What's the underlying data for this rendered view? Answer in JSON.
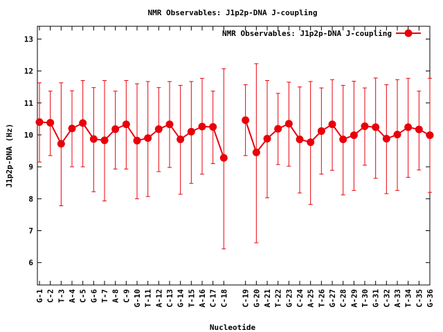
{
  "chart_data": {
    "type": "line",
    "title": "NMR Observables: J1p2p-DNA J-coupling",
    "xlabel": "Nucleotide",
    "ylabel": "J1p2p-DNA (Hz)",
    "ylim": [
      5.3,
      13.4
    ],
    "yticks": [
      6,
      7,
      8,
      9,
      10,
      11,
      12,
      13
    ],
    "grid": false,
    "legend_position": "top-right",
    "categories": [
      "G-1",
      "C-2",
      "T-3",
      "A-4",
      "C-5",
      "G-6",
      "T-7",
      "A-8",
      "C-9",
      "G-10",
      "T-11",
      "A-12",
      "C-13",
      "G-14",
      "T-15",
      "A-16",
      "C-17",
      "C-18",
      "",
      "C-19",
      "G-20",
      "A-21",
      "T-22",
      "G-23",
      "C-24",
      "A-25",
      "T-26",
      "G-27",
      "C-28",
      "A-29",
      "T-30",
      "G-31",
      "C-32",
      "A-33",
      "T-34",
      "C-35",
      "G-36"
    ],
    "series": [
      {
        "name": "NMR Observables: J1p2p-DNA J-coupling",
        "color": "#e8000b",
        "values": [
          10.4,
          10.38,
          9.72,
          10.2,
          10.37,
          9.87,
          9.83,
          10.18,
          10.33,
          9.82,
          9.9,
          10.18,
          10.33,
          9.86,
          10.1,
          10.26,
          10.25,
          9.28,
          null,
          10.46,
          9.45,
          9.88,
          10.19,
          10.35,
          9.86,
          9.77,
          10.12,
          10.33,
          9.86,
          9.99,
          10.27,
          10.24,
          9.88,
          10.01,
          10.24,
          10.17,
          9.99
        ],
        "err_low": [
          9.15,
          9.35,
          7.78,
          9.0,
          9.0,
          8.22,
          7.93,
          8.93,
          8.93,
          8.0,
          8.07,
          8.85,
          8.98,
          8.14,
          8.48,
          8.77,
          9.1,
          6.43,
          null,
          9.35,
          6.62,
          8.03,
          9.07,
          9.02,
          8.18,
          7.82,
          8.77,
          8.89,
          8.12,
          8.26,
          9.05,
          8.64,
          8.16,
          8.26,
          8.67,
          8.9,
          8.2
        ],
        "err_high": [
          11.63,
          11.37,
          11.63,
          11.38,
          11.7,
          11.48,
          11.7,
          11.37,
          11.7,
          11.6,
          11.67,
          11.48,
          11.67,
          11.55,
          11.67,
          11.77,
          11.37,
          12.07,
          null,
          11.57,
          12.23,
          11.7,
          11.3,
          11.65,
          11.5,
          11.67,
          11.47,
          11.73,
          11.55,
          11.68,
          11.47,
          11.78,
          11.57,
          11.73,
          11.77,
          11.37,
          11.77
        ]
      }
    ]
  }
}
